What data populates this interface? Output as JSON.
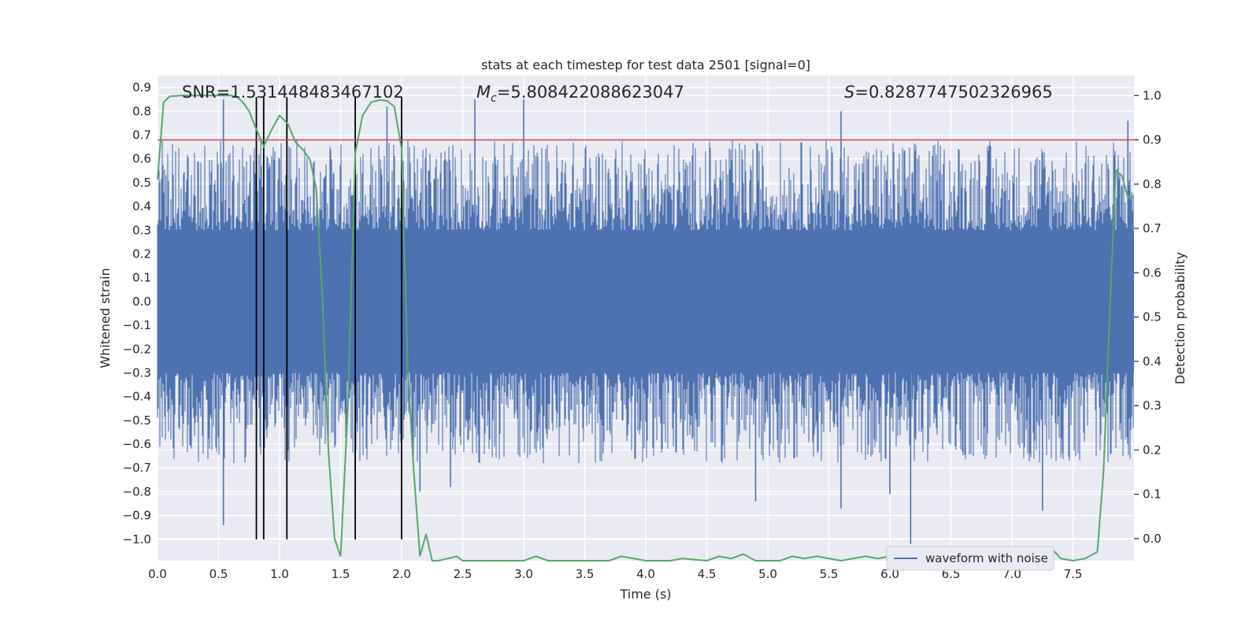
{
  "chart_data": {
    "type": "line",
    "title": "stats at each timestep for test data 2501 [signal=0]",
    "xlabel": "Time (s)",
    "ylabel": "Whitened strain",
    "y2label": "Detection probability",
    "xlim": [
      0,
      8
    ],
    "ylim": [
      -1.09,
      0.95
    ],
    "y2lim": [
      -0.05,
      1.045
    ],
    "x_ticks": [
      "0.0",
      "0.5",
      "1.0",
      "1.5",
      "2.0",
      "2.5",
      "3.0",
      "3.5",
      "4.0",
      "4.5",
      "5.0",
      "5.5",
      "6.0",
      "6.5",
      "7.0",
      "7.5"
    ],
    "x_tick_values": [
      0,
      0.5,
      1,
      1.5,
      2,
      2.5,
      3,
      3.5,
      4,
      4.5,
      5,
      5.5,
      6,
      6.5,
      7,
      7.5
    ],
    "y_ticks": [
      "0.9",
      "0.8",
      "0.7",
      "0.6",
      "0.5",
      "0.4",
      "0.3",
      "0.2",
      "0.1",
      "0.0",
      "−0.1",
      "−0.2",
      "−0.3",
      "−0.4",
      "−0.5",
      "−0.6",
      "−0.7",
      "−0.8",
      "−0.9",
      "−1.0"
    ],
    "y_tick_values": [
      0.9,
      0.8,
      0.7,
      0.6,
      0.5,
      0.4,
      0.3,
      0.2,
      0.1,
      0,
      -0.1,
      -0.2,
      -0.3,
      -0.4,
      -0.5,
      -0.6,
      -0.7,
      -0.8,
      -0.9,
      -1.0
    ],
    "y2_ticks": [
      "1.0",
      "0.9",
      "0.8",
      "0.7",
      "0.6",
      "0.5",
      "0.4",
      "0.3",
      "0.2",
      "0.1",
      "0.0"
    ],
    "y2_tick_values": [
      1.0,
      0.9,
      0.8,
      0.7,
      0.6,
      0.5,
      0.4,
      0.3,
      0.2,
      0.1,
      0.0
    ],
    "grid": true,
    "legend": {
      "placement": "lower-right",
      "entries": [
        "waveform with noise"
      ]
    },
    "annotations": {
      "snr": "SNR=1.531448483467102",
      "mc_symbol": "M",
      "mc_sub": "c",
      "mc_value": "=5.808422088623047",
      "s_symbol": "S",
      "s_value": "=0.8287747502326965"
    },
    "threshold_y2": 0.9,
    "vlines_x": [
      0.81,
      0.87,
      1.06,
      1.62,
      2.0
    ],
    "vline_y_range": [
      -1.0,
      0.86
    ],
    "waveform": {
      "name": "waveform with noise",
      "description_level": "dense noise band",
      "core_abs": 0.3,
      "typical_max": 0.5,
      "typical_min": -0.5,
      "spikes": [
        {
          "x": 0.54,
          "y": 0.85
        },
        {
          "x": 0.54,
          "y": -0.94
        },
        {
          "x": 1.62,
          "y": -0.77
        },
        {
          "x": 1.88,
          "y": 0.82
        },
        {
          "x": 2.15,
          "y": -0.8
        },
        {
          "x": 2.4,
          "y": -0.78
        },
        {
          "x": 2.6,
          "y": 0.85
        },
        {
          "x": 3.0,
          "y": 0.85
        },
        {
          "x": 4.9,
          "y": -0.84
        },
        {
          "x": 5.6,
          "y": 0.8
        },
        {
          "x": 5.6,
          "y": -0.87
        },
        {
          "x": 6.0,
          "y": -0.81
        },
        {
          "x": 6.17,
          "y": -1.02
        },
        {
          "x": 7.25,
          "y": -0.88
        },
        {
          "x": 7.95,
          "y": 0.76
        }
      ]
    },
    "detection_probability": {
      "x": [
        0.0,
        0.05,
        0.1,
        0.2,
        0.3,
        0.4,
        0.5,
        0.6,
        0.65,
        0.7,
        0.75,
        0.8,
        0.87,
        0.93,
        1.0,
        1.07,
        1.13,
        1.2,
        1.25,
        1.3,
        1.35,
        1.4,
        1.45,
        1.5,
        1.56,
        1.62,
        1.68,
        1.75,
        1.82,
        1.88,
        1.94,
        2.0,
        2.05,
        2.1,
        2.15,
        2.2,
        2.25,
        2.3,
        2.38,
        2.45,
        2.5,
        2.6,
        2.7,
        2.8,
        2.9,
        3.0,
        3.1,
        3.2,
        3.3,
        3.5,
        3.7,
        3.8,
        4.0,
        4.2,
        4.3,
        4.5,
        4.6,
        4.7,
        4.8,
        4.9,
        5.1,
        5.2,
        5.3,
        5.4,
        5.6,
        5.8,
        5.9,
        6.0,
        6.1,
        6.15,
        6.2,
        6.3,
        6.5,
        6.7,
        6.9,
        7.0,
        7.05,
        7.1,
        7.2,
        7.25,
        7.3,
        7.35,
        7.4,
        7.5,
        7.6,
        7.7,
        7.75,
        7.8,
        7.85,
        7.9,
        7.95,
        8.0
      ],
      "y": [
        0.81,
        0.985,
        0.998,
        1.0,
        1.0,
        1.0,
        1.0,
        1.0,
        0.997,
        0.985,
        0.965,
        0.93,
        0.885,
        0.92,
        0.955,
        0.935,
        0.895,
        0.875,
        0.855,
        0.79,
        0.55,
        0.2,
        0.0,
        -0.04,
        0.3,
        0.87,
        0.955,
        0.985,
        0.99,
        0.988,
        0.975,
        0.88,
        0.38,
        0.15,
        -0.04,
        0.01,
        -0.05,
        -0.05,
        -0.045,
        -0.04,
        -0.05,
        -0.05,
        -0.05,
        -0.05,
        -0.05,
        -0.05,
        -0.04,
        -0.05,
        -0.05,
        -0.05,
        -0.05,
        -0.04,
        -0.05,
        -0.05,
        -0.045,
        -0.05,
        -0.04,
        -0.045,
        -0.035,
        -0.05,
        -0.05,
        -0.04,
        -0.045,
        -0.04,
        -0.05,
        -0.04,
        -0.045,
        -0.04,
        -0.03,
        -0.025,
        -0.035,
        -0.045,
        -0.05,
        -0.05,
        -0.05,
        -0.04,
        -0.03,
        -0.025,
        -0.04,
        -0.03,
        -0.025,
        -0.03,
        -0.045,
        -0.05,
        -0.045,
        -0.03,
        0.15,
        0.5,
        0.83,
        0.82,
        0.77,
        0.77
      ]
    },
    "colors": {
      "waveform": "#4c72b0",
      "probability": "#55a868",
      "threshold": "#c44e52",
      "vline": "#000000",
      "axes_bg": "#eaeaf2",
      "grid": "#ffffff"
    }
  }
}
